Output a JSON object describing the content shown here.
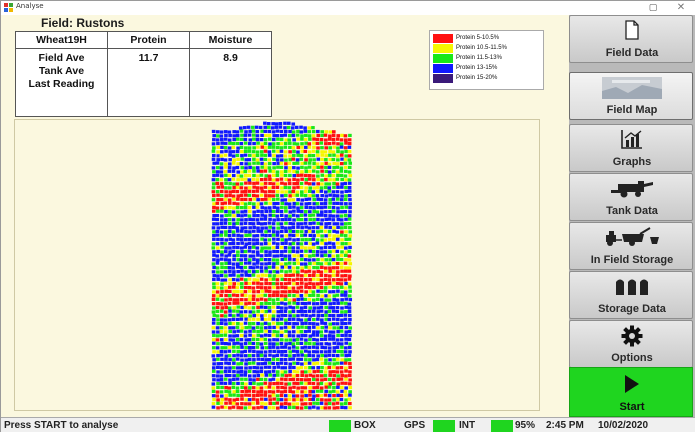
{
  "window": {
    "title": "Analyse",
    "restore_glyph": "▢",
    "close_glyph": "✕"
  },
  "field": {
    "title": "Field: Rustons"
  },
  "readings": {
    "headers": [
      "Wheat19H",
      "Protein",
      "Moisture"
    ],
    "row_labels": [
      "Field Ave",
      "Tank Ave",
      "Last Reading"
    ],
    "field_ave": {
      "protein": "11.7",
      "moisture": "8.9"
    }
  },
  "legend": [
    {
      "label": "Protein  5-10.5%",
      "color": "#ff1010"
    },
    {
      "label": "Protein  10.5-11.5%",
      "color": "#f6f600"
    },
    {
      "label": "Protein  11.5-13%",
      "color": "#18e818"
    },
    {
      "label": "Protein  13-15%",
      "color": "#1018ff"
    },
    {
      "label": "Protein  15-20%",
      "color": "#3a1a7a"
    }
  ],
  "map": {
    "bands": [
      "blue",
      "green",
      "yellow",
      "red"
    ]
  },
  "nav": {
    "field_data": "Field Data",
    "field_map": "Field Map",
    "graphs": "Graphs",
    "tank_data": "Tank Data",
    "in_field_storage": "In Field Storage",
    "storage_data": "Storage Data",
    "options": "Options",
    "start": "Start"
  },
  "icons": {
    "field_data": "document-icon",
    "field_map": "map-thumbnail-icon",
    "graphs": "chart-icon",
    "tank_data": "harvester-icon",
    "in_field_storage": "grain-cart-icon",
    "storage_data": "silo-icon",
    "options": "gear-icon",
    "start": "play-icon"
  },
  "status": {
    "message": "Press START to analyse",
    "box": "BOX",
    "gps": "GPS",
    "int": "INT",
    "percent": "95%",
    "time": "2:45 PM",
    "date": "10/02/2020",
    "indicator_color": "#1fd51f"
  }
}
